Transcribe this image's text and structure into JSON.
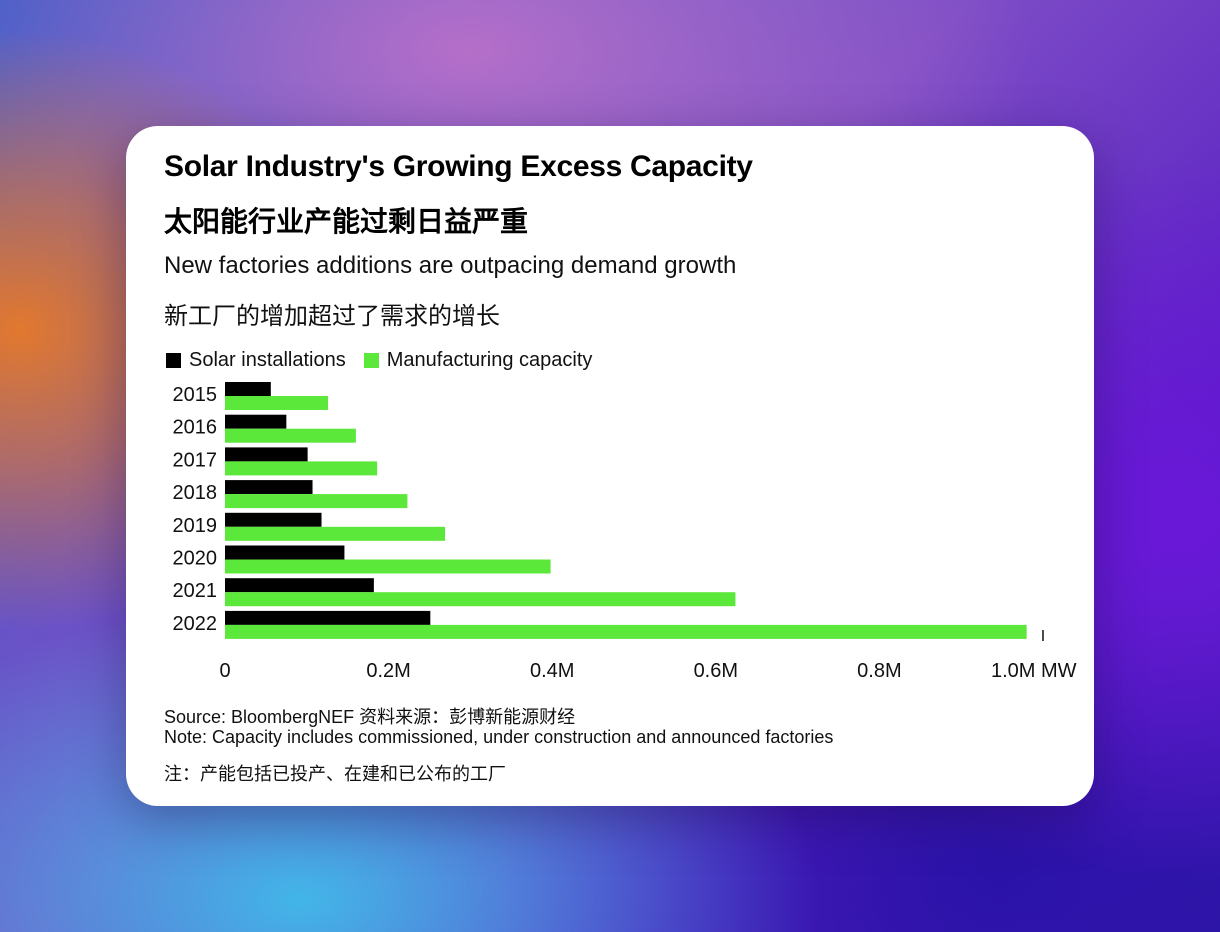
{
  "card": {
    "title": "Solar Industry's Growing Excess Capacity",
    "title_cn": "太阳能行业产能过剩日益严重",
    "subtitle": "New factories additions are outpacing demand growth",
    "subtitle_cn": "新工厂的增加超过了需求的增长",
    "source": "Source: BloombergNEF 资料来源：彭博新能源财经",
    "note": "Note: Capacity includes commissioned, under construction and announced factories",
    "note_cn": "注：产能包括已投产、在建和已公布的工厂"
  },
  "colors": {
    "installations": "#000000",
    "capacity": "#5be83a"
  },
  "chart_data": {
    "type": "bar",
    "orientation": "horizontal",
    "categories": [
      "2015",
      "2016",
      "2017",
      "2018",
      "2019",
      "2020",
      "2021",
      "2022"
    ],
    "series": [
      {
        "name": "Solar installations",
        "values": [
          56,
          75,
          101,
          107,
          118,
          146,
          182,
          251
        ]
      },
      {
        "name": "Manufacturing capacity",
        "values": [
          126,
          160,
          186,
          223,
          269,
          398,
          624,
          980
        ]
      }
    ],
    "xlim": [
      0,
      1000000
    ],
    "value_unit_multiplier": 1000,
    "x_ticks": [
      "0",
      "0.2M",
      "0.4M",
      "0.6M",
      "0.8M",
      "1.0M MW"
    ],
    "legend_position": "top-left",
    "grid": false
  }
}
